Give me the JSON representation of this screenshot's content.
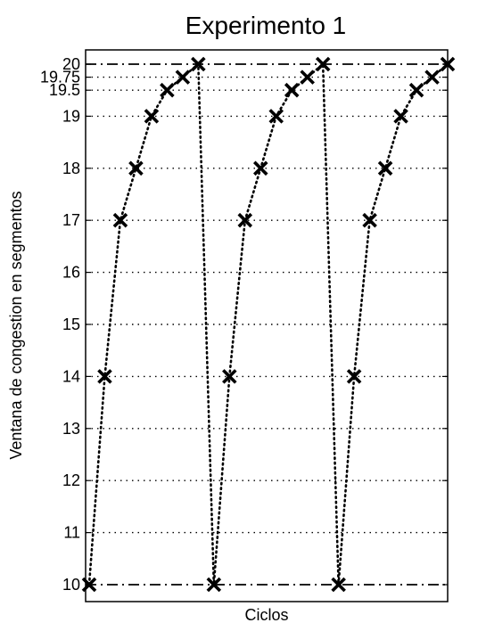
{
  "chart_data": {
    "type": "line",
    "title": "Experimento 1",
    "xlabel": "Ciclos",
    "ylabel": "Ventana de congestion en segmentos",
    "ylim": [
      10,
      20
    ],
    "yticks": [
      10,
      11,
      12,
      13,
      14,
      15,
      16,
      17,
      18,
      19,
      19.5,
      19.75,
      20
    ],
    "ytick_labels": [
      "10",
      "11",
      "12",
      "13",
      "14",
      "15",
      "16",
      "17",
      "18",
      "19",
      "19.5",
      "19.75",
      "20"
    ],
    "grid": true,
    "reference_lines": [
      10,
      20
    ],
    "series": [
      {
        "values": [
          10,
          14,
          17,
          18,
          19,
          19.5,
          19.75,
          20,
          10,
          14,
          17,
          18,
          19,
          19.5,
          19.75,
          20,
          10,
          14,
          17,
          18,
          19,
          19.5,
          19.75,
          20
        ]
      }
    ]
  }
}
